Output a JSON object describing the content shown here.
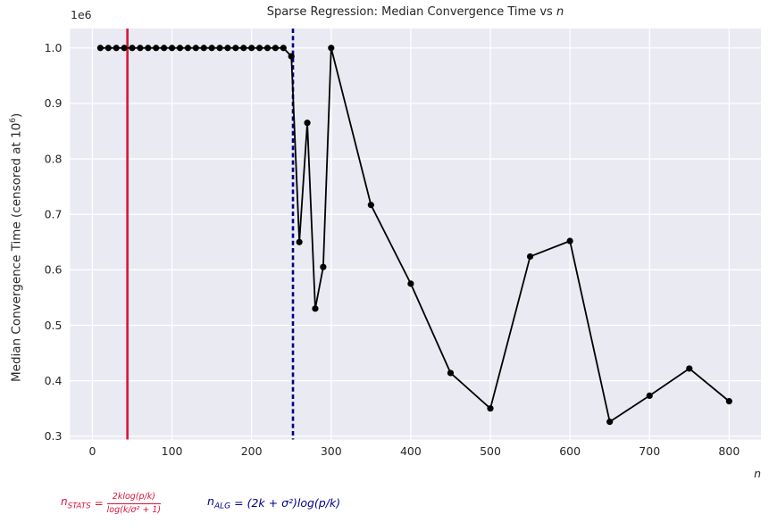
{
  "title": {
    "prefix": "Sparse Regression: Median Convergence Time vs ",
    "var": "n"
  },
  "axes": {
    "offset_text": "1e6",
    "ylabel": {
      "pre": "Median Convergence Time (censored at 10",
      "sup": "6",
      "post": ")"
    },
    "xlabel": "n",
    "x_tick_labels": [
      "0",
      "100",
      "200",
      "300",
      "400",
      "500",
      "600",
      "700",
      "800"
    ],
    "y_tick_labels": [
      "1.0",
      "0.9",
      "0.8",
      "0.7",
      "0.6",
      "0.5",
      "0.4",
      "0.3"
    ]
  },
  "chart_data": {
    "type": "line",
    "title": "Sparse Regression: Median Convergence Time vs n",
    "xlabel": "n",
    "ylabel": "Median Convergence Time (censored at 10^6)",
    "y_unit": "values are in units of 1e6 (axis offset label 1e6)",
    "grid": true,
    "plot_bg": "#eaeaf2",
    "grid_color": "#ffffff",
    "line_color": "#000000",
    "marker": "o",
    "xlim": [
      -28,
      840
    ],
    "ylim": [
      0.294,
      1.035
    ],
    "x": [
      10,
      20,
      30,
      40,
      50,
      60,
      70,
      80,
      90,
      100,
      110,
      120,
      130,
      140,
      150,
      160,
      170,
      180,
      190,
      200,
      210,
      220,
      230,
      240,
      250,
      260,
      270,
      280,
      290,
      300,
      350,
      400,
      450,
      500,
      550,
      600,
      650,
      700,
      750,
      800
    ],
    "y": [
      1.0,
      1.0,
      1.0,
      1.0,
      1.0,
      1.0,
      1.0,
      1.0,
      1.0,
      1.0,
      1.0,
      1.0,
      1.0,
      1.0,
      1.0,
      1.0,
      1.0,
      1.0,
      1.0,
      1.0,
      1.0,
      1.0,
      1.0,
      1.0,
      0.985,
      0.65,
      0.865,
      0.53,
      0.605,
      1.0,
      0.717,
      0.575,
      0.414,
      0.35,
      0.624,
      0.652,
      0.326,
      0.373,
      0.422,
      0.363
    ],
    "vlines": [
      {
        "label": "n_STATS",
        "x": 44,
        "color": "#dc143c",
        "style": "solid"
      },
      {
        "label": "n_ALG",
        "x": 252,
        "color": "#00008b",
        "style": "dashed"
      }
    ]
  },
  "formulas": {
    "stats": {
      "color": "#dc143c",
      "base": "n",
      "sub": "STATS",
      "eq": "=",
      "numerator": "2klog(p/k)",
      "denominator": "log(k/σ² + 1)"
    },
    "alg": {
      "color": "#00008b",
      "base": "n",
      "sub": "ALG",
      "eq": "=",
      "body": "(2k + σ²)log(p/k)"
    }
  }
}
